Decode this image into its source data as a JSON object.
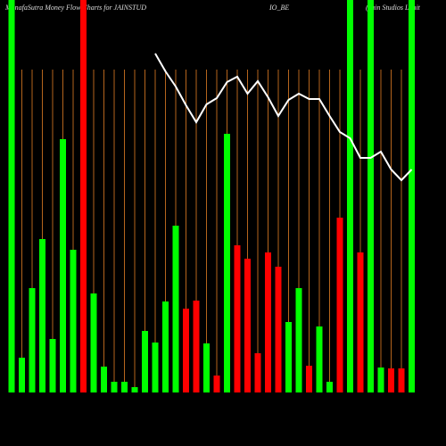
{
  "chart_data": {
    "type": "bar",
    "title": [
      "MunafaSutra  Money Flow  Charts for JAINSTUD",
      "IO_BE",
      "(Jain Studios Limit"
    ],
    "categories": [
      null,
      null,
      null,
      null,
      null,
      null,
      null,
      null,
      null,
      null,
      null,
      null,
      null,
      null,
      null,
      null,
      null,
      null,
      null,
      null,
      null,
      null,
      null,
      null,
      null,
      null,
      null,
      null,
      null,
      null,
      null,
      null,
      null,
      null,
      null,
      null,
      null,
      null,
      null,
      null
    ],
    "values": [
      440,
      39,
      117,
      172,
      60,
      284,
      160,
      440,
      111,
      29,
      12,
      12,
      6,
      69,
      56,
      102,
      187,
      94,
      103,
      55,
      19,
      290,
      165,
      150,
      44,
      157,
      141,
      79,
      117,
      30,
      74,
      12,
      196,
      440,
      157,
      440,
      28,
      27,
      27,
      440
    ],
    "bar_colors": [
      "#00ff00",
      "#00ff00",
      "#00ff00",
      "#00ff00",
      "#00ff00",
      "#00ff00",
      "#00ff00",
      "#ff0000",
      "#00ff00",
      "#00ff00",
      "#00ff00",
      "#00ff00",
      "#00ff00",
      "#00ff00",
      "#00ff00",
      "#00ff00",
      "#00ff00",
      "#ff0000",
      "#ff0000",
      "#00ff00",
      "#ff0000",
      "#00ff00",
      "#ff0000",
      "#ff0000",
      "#ff0000",
      "#ff0000",
      "#ff0000",
      "#00ff00",
      "#00ff00",
      "#ff0000",
      "#00ff00",
      "#00ff00",
      "#ff0000",
      "#00ff00",
      "#ff0000",
      "#00ff00",
      "#00ff00",
      "#ff0000",
      "#ff0000",
      "#00ff00"
    ],
    "line": {
      "color": "#ffffff",
      "values": [
        null,
        null,
        null,
        null,
        null,
        null,
        null,
        null,
        null,
        null,
        null,
        null,
        null,
        null,
        380,
        360,
        343,
        322,
        303,
        323,
        330,
        348,
        354,
        335,
        349,
        331,
        310,
        328,
        335,
        329,
        329,
        310,
        292,
        285,
        263,
        263,
        270,
        250,
        238,
        250
      ]
    },
    "ylim": [
      0,
      440
    ]
  }
}
